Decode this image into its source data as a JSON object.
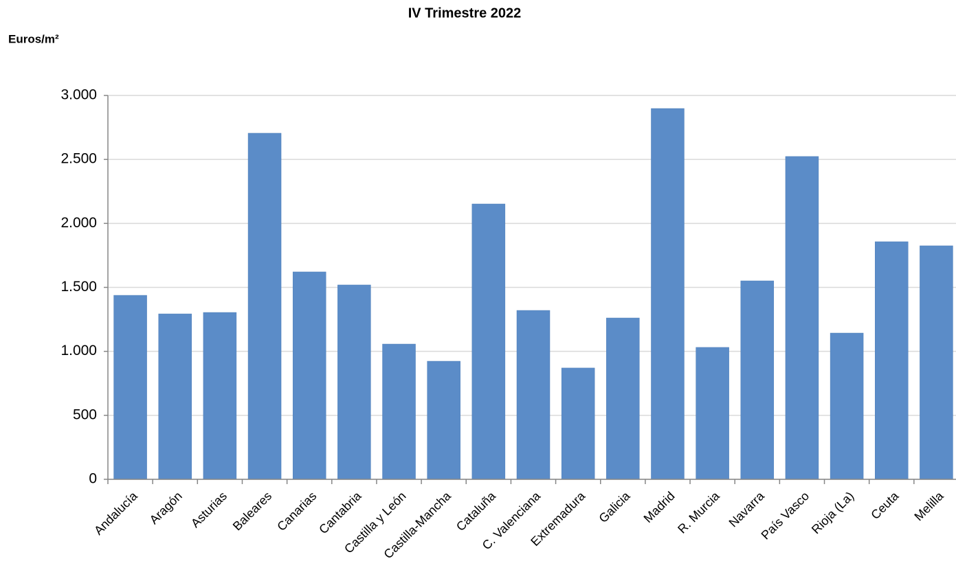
{
  "chart_data": {
    "type": "bar",
    "title": "IV Trimestre 2022",
    "y_label": "Euros/m²",
    "categories": [
      "Andalucía",
      "Aragón",
      "Asturias",
      "Baleares",
      "Canarias",
      "Cantabria",
      "Castilla y León",
      "Castilla-Mancha",
      "Cataluña",
      "C. Valenciana",
      "Extremadura",
      "Galicia",
      "Madrid",
      "R. Murcia",
      "Navarra",
      "País Vasco",
      "Rioja (La)",
      "Ceuta",
      "Melilla"
    ],
    "values": [
      1438,
      1293,
      1304,
      2705,
      1621,
      1519,
      1057,
      923,
      2152,
      1320,
      870,
      1261,
      2898,
      1031,
      1551,
      2523,
      1143,
      1857,
      1825
    ],
    "color": "#5b8cc8",
    "ylim": [
      0,
      3000
    ],
    "yticks": [
      0,
      500,
      {
        "value": 1000,
        "label": "1.000"
      },
      {
        "value": 1500,
        "label": "1.500"
      },
      {
        "value": 2000,
        "label": "2.000"
      },
      {
        "value": 2500,
        "label": "2.500"
      },
      {
        "value": 3000,
        "label": "3.000"
      }
    ],
    "grid": true
  }
}
